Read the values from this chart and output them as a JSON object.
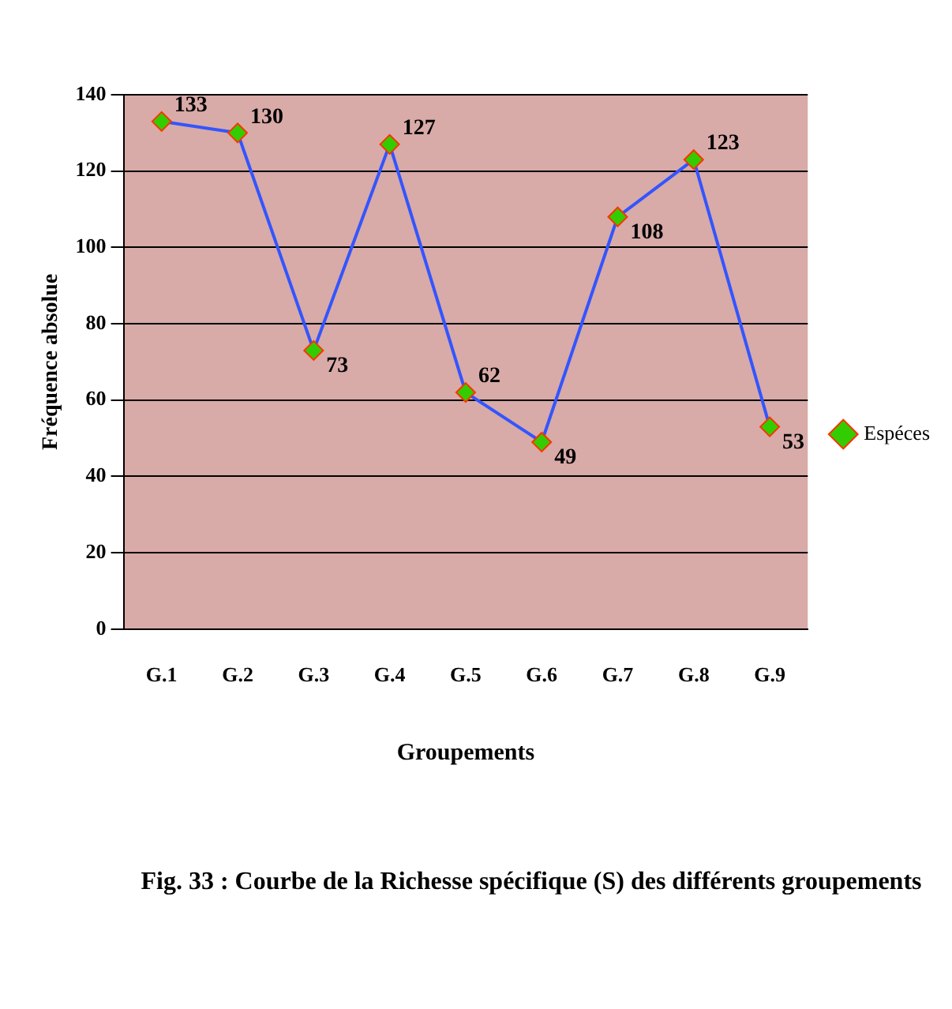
{
  "chart_data": {
    "type": "line",
    "xlabel": "Groupements",
    "ylabel": "Fréquence absolue",
    "categories": [
      "G.1",
      "G.2",
      "G.3",
      "G.4",
      "G.5",
      "G.6",
      "G.7",
      "G.8",
      "G.9"
    ],
    "series": [
      {
        "name": "Espéces",
        "color": "#3355ff",
        "values": [
          133,
          130,
          73,
          127,
          62,
          49,
          108,
          123,
          53
        ]
      }
    ],
    "ylim": [
      0,
      140
    ],
    "yticks": [
      0,
      20,
      40,
      60,
      80,
      100,
      120,
      140
    ],
    "grid": "y",
    "legend": "right",
    "marker": "diamond",
    "line_style": "solid",
    "data_labels": true,
    "annotations": [
      "Fig. 33 : Courbe de la Richesse spécifique (S) des différents groupements"
    ]
  }
}
